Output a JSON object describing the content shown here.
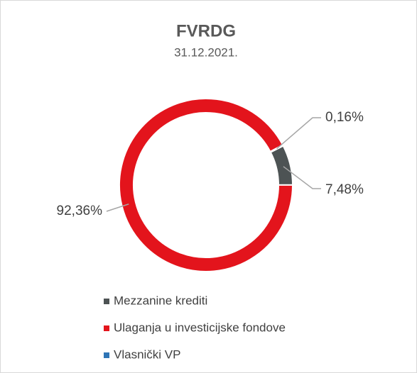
{
  "chart_data": {
    "type": "pie",
    "donut": true,
    "title": "FVRDG",
    "subtitle": "31.12.2021.",
    "categories": [
      "Mezzanine krediti",
      "Ulaganja u investicijske fondove",
      "Vlasnički VP"
    ],
    "values": [
      7.48,
      92.36,
      0.16
    ],
    "value_labels": [
      "7,48%",
      "92,36%",
      "0,16%"
    ],
    "colors": [
      "#4d5354",
      "#e3141c",
      "#2e75b6"
    ],
    "legend": "bottom"
  }
}
